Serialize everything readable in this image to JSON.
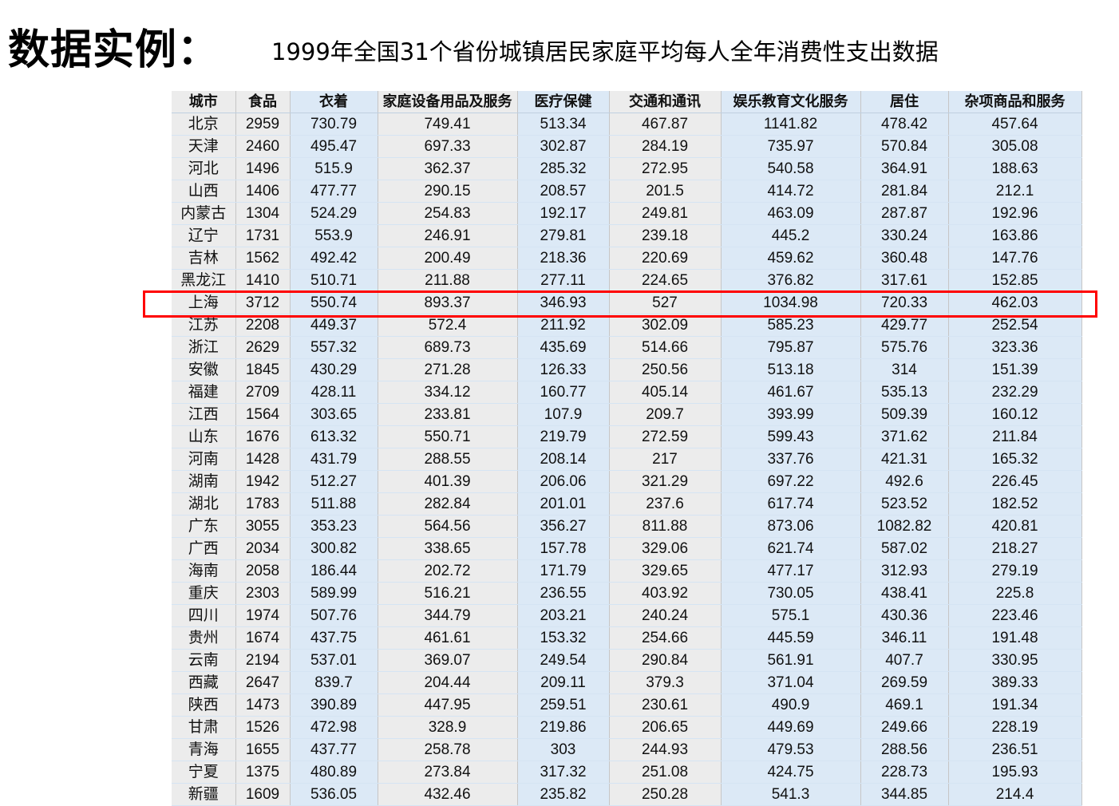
{
  "title": "数据实例：",
  "subtitle": "1999年全国31个省份城镇居民家庭平均每人全年消费性支出数据",
  "highlight": {
    "row_label": "上海",
    "color": "#ff0000"
  },
  "colors": {
    "gray_column": "#ececec",
    "blue_column": "#dce9f6",
    "grid_line": "#c6c6c6",
    "highlight_border": "#ff0000"
  },
  "table": {
    "headers": [
      "城市",
      "食品",
      "衣着",
      "家庭设备用品及服务",
      "医疗保健",
      "交通和通讯",
      "娱乐教育文化服务",
      "居住",
      "杂项商品和服务"
    ],
    "rows": [
      [
        "北京",
        "2959",
        "730.79",
        "749.41",
        "513.34",
        "467.87",
        "1141.82",
        "478.42",
        "457.64"
      ],
      [
        "天津",
        "2460",
        "495.47",
        "697.33",
        "302.87",
        "284.19",
        "735.97",
        "570.84",
        "305.08"
      ],
      [
        "河北",
        "1496",
        "515.9",
        "362.37",
        "285.32",
        "272.95",
        "540.58",
        "364.91",
        "188.63"
      ],
      [
        "山西",
        "1406",
        "477.77",
        "290.15",
        "208.57",
        "201.5",
        "414.72",
        "281.84",
        "212.1"
      ],
      [
        "内蒙古",
        "1304",
        "524.29",
        "254.83",
        "192.17",
        "249.81",
        "463.09",
        "287.87",
        "192.96"
      ],
      [
        "辽宁",
        "1731",
        "553.9",
        "246.91",
        "279.81",
        "239.18",
        "445.2",
        "330.24",
        "163.86"
      ],
      [
        "吉林",
        "1562",
        "492.42",
        "200.49",
        "218.36",
        "220.69",
        "459.62",
        "360.48",
        "147.76"
      ],
      [
        "黑龙江",
        "1410",
        "510.71",
        "211.88",
        "277.11",
        "224.65",
        "376.82",
        "317.61",
        "152.85"
      ],
      [
        "上海",
        "3712",
        "550.74",
        "893.37",
        "346.93",
        "527",
        "1034.98",
        "720.33",
        "462.03"
      ],
      [
        "江苏",
        "2208",
        "449.37",
        "572.4",
        "211.92",
        "302.09",
        "585.23",
        "429.77",
        "252.54"
      ],
      [
        "浙江",
        "2629",
        "557.32",
        "689.73",
        "435.69",
        "514.66",
        "795.87",
        "575.76",
        "323.36"
      ],
      [
        "安徽",
        "1845",
        "430.29",
        "271.28",
        "126.33",
        "250.56",
        "513.18",
        "314",
        "151.39"
      ],
      [
        "福建",
        "2709",
        "428.11",
        "334.12",
        "160.77",
        "405.14",
        "461.67",
        "535.13",
        "232.29"
      ],
      [
        "江西",
        "1564",
        "303.65",
        "233.81",
        "107.9",
        "209.7",
        "393.99",
        "509.39",
        "160.12"
      ],
      [
        "山东",
        "1676",
        "613.32",
        "550.71",
        "219.79",
        "272.59",
        "599.43",
        "371.62",
        "211.84"
      ],
      [
        "河南",
        "1428",
        "431.79",
        "288.55",
        "208.14",
        "217",
        "337.76",
        "421.31",
        "165.32"
      ],
      [
        "湖南",
        "1942",
        "512.27",
        "401.39",
        "206.06",
        "321.29",
        "697.22",
        "492.6",
        "226.45"
      ],
      [
        "湖北",
        "1783",
        "511.88",
        "282.84",
        "201.01",
        "237.6",
        "617.74",
        "523.52",
        "182.52"
      ],
      [
        "广东",
        "3055",
        "353.23",
        "564.56",
        "356.27",
        "811.88",
        "873.06",
        "1082.82",
        "420.81"
      ],
      [
        "广西",
        "2034",
        "300.82",
        "338.65",
        "157.78",
        "329.06",
        "621.74",
        "587.02",
        "218.27"
      ],
      [
        "海南",
        "2058",
        "186.44",
        "202.72",
        "171.79",
        "329.65",
        "477.17",
        "312.93",
        "279.19"
      ],
      [
        "重庆",
        "2303",
        "589.99",
        "516.21",
        "236.55",
        "403.92",
        "730.05",
        "438.41",
        "225.8"
      ],
      [
        "四川",
        "1974",
        "507.76",
        "344.79",
        "203.21",
        "240.24",
        "575.1",
        "430.36",
        "223.46"
      ],
      [
        "贵州",
        "1674",
        "437.75",
        "461.61",
        "153.32",
        "254.66",
        "445.59",
        "346.11",
        "191.48"
      ],
      [
        "云南",
        "2194",
        "537.01",
        "369.07",
        "249.54",
        "290.84",
        "561.91",
        "407.7",
        "330.95"
      ],
      [
        "西藏",
        "2647",
        "839.7",
        "204.44",
        "209.11",
        "379.3",
        "371.04",
        "269.59",
        "389.33"
      ],
      [
        "陕西",
        "1473",
        "390.89",
        "447.95",
        "259.51",
        "230.61",
        "490.9",
        "469.1",
        "191.34"
      ],
      [
        "甘肃",
        "1526",
        "472.98",
        "328.9",
        "219.86",
        "206.65",
        "449.69",
        "249.66",
        "228.19"
      ],
      [
        "青海",
        "1655",
        "437.77",
        "258.78",
        "303",
        "244.93",
        "479.53",
        "288.56",
        "236.51"
      ],
      [
        "宁夏",
        "1375",
        "480.89",
        "273.84",
        "317.32",
        "251.08",
        "424.75",
        "228.73",
        "195.93"
      ],
      [
        "新疆",
        "1609",
        "536.05",
        "432.46",
        "235.82",
        "250.28",
        "541.3",
        "344.85",
        "214.4"
      ]
    ]
  }
}
